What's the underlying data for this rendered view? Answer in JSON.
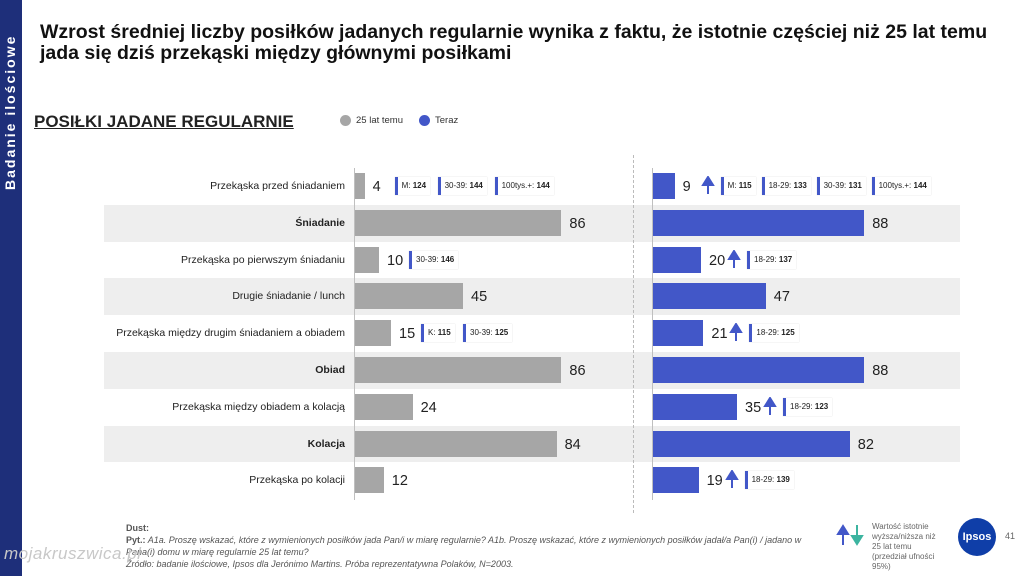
{
  "sidebar": {
    "label": "Badanie ilościowe"
  },
  "title": "Wzrost średniej liczby posiłków jadanych regularnie wynika z faktu, że istotnie częściej niż 25 lat temu jada się dziś przekąski między głównymi posiłkami",
  "section_title": "POSIŁKI JADANE REGULARNIE",
  "colors": {
    "past": "#a6a6a6",
    "now": "#4257c8",
    "sidebar": "#1e2f7a"
  },
  "chart_data": {
    "type": "bar",
    "categories": [
      "Przekąska przed śniadaniem",
      "Śniadanie",
      "Przekąska po pierwszym śniadaniu",
      "Drugie śniadanie / lunch",
      "Przekąska między drugim śniadaniem a obiadem",
      "Obiad",
      "Przekąska między obiadem a kolacją",
      "Kolacja",
      "Przekąska po kolacji"
    ],
    "bold_categories": [
      false,
      true,
      false,
      false,
      false,
      true,
      false,
      true,
      false
    ],
    "series": [
      {
        "name": "25 lat temu",
        "values": [
          4,
          86,
          10,
          45,
          15,
          86,
          24,
          84,
          12
        ]
      },
      {
        "name": "Teraz",
        "values": [
          9,
          88,
          20,
          47,
          21,
          88,
          35,
          82,
          19
        ]
      }
    ],
    "up_arrows_now": [
      true,
      false,
      true,
      false,
      true,
      false,
      true,
      false,
      true
    ],
    "tags_past": [
      [
        {
          "k": "M:",
          "v": "124"
        },
        {
          "k": "30-39:",
          "v": "144"
        },
        {
          "k": "100tys.+:",
          "v": "144"
        }
      ],
      [],
      [
        {
          "k": "30-39:",
          "v": "146"
        }
      ],
      [],
      [
        {
          "k": "K:",
          "v": "115"
        },
        {
          "k": "30-39:",
          "v": "125"
        }
      ],
      [],
      [],
      [],
      []
    ],
    "tags_now": [
      [
        {
          "k": "M:",
          "v": "115"
        },
        {
          "k": "18-29:",
          "v": "133"
        },
        {
          "k": "30-39:",
          "v": "131"
        },
        {
          "k": "100tys.+:",
          "v": "144"
        }
      ],
      [],
      [
        {
          "k": "18-29:",
          "v": "137"
        }
      ],
      [],
      [
        {
          "k": "18-29:",
          "v": "125"
        }
      ],
      [],
      [
        {
          "k": "18-29:",
          "v": "123"
        }
      ],
      [],
      [
        {
          "k": "18-29:",
          "v": "139"
        }
      ]
    ],
    "xlim": [
      0,
      100
    ]
  },
  "footer": {
    "base": "Dust:",
    "question_label": "Pyt.:",
    "question": "A1a. Proszę wskazać, które z wymienionych posiłków jada Pan/i w miarę regularnie? A1b. Proszę wskazać, które z wymienionych posiłków jadał/a Pan(i) / jadano w Pana(i) domu w miarę regularnie 25 lat temu?",
    "source": "Źródło: badanie ilościowe, Ipsos dla Jerónimo Martins. Próba reprezentatywna Polaków, N=2003."
  },
  "significance_note": "Wartość istotnie wyższa/niższa niż 25 lat temu (przedział ufności 95%)",
  "logo": "Ipsos",
  "page_number": "41",
  "watermark": "mojakruszwica.pl"
}
